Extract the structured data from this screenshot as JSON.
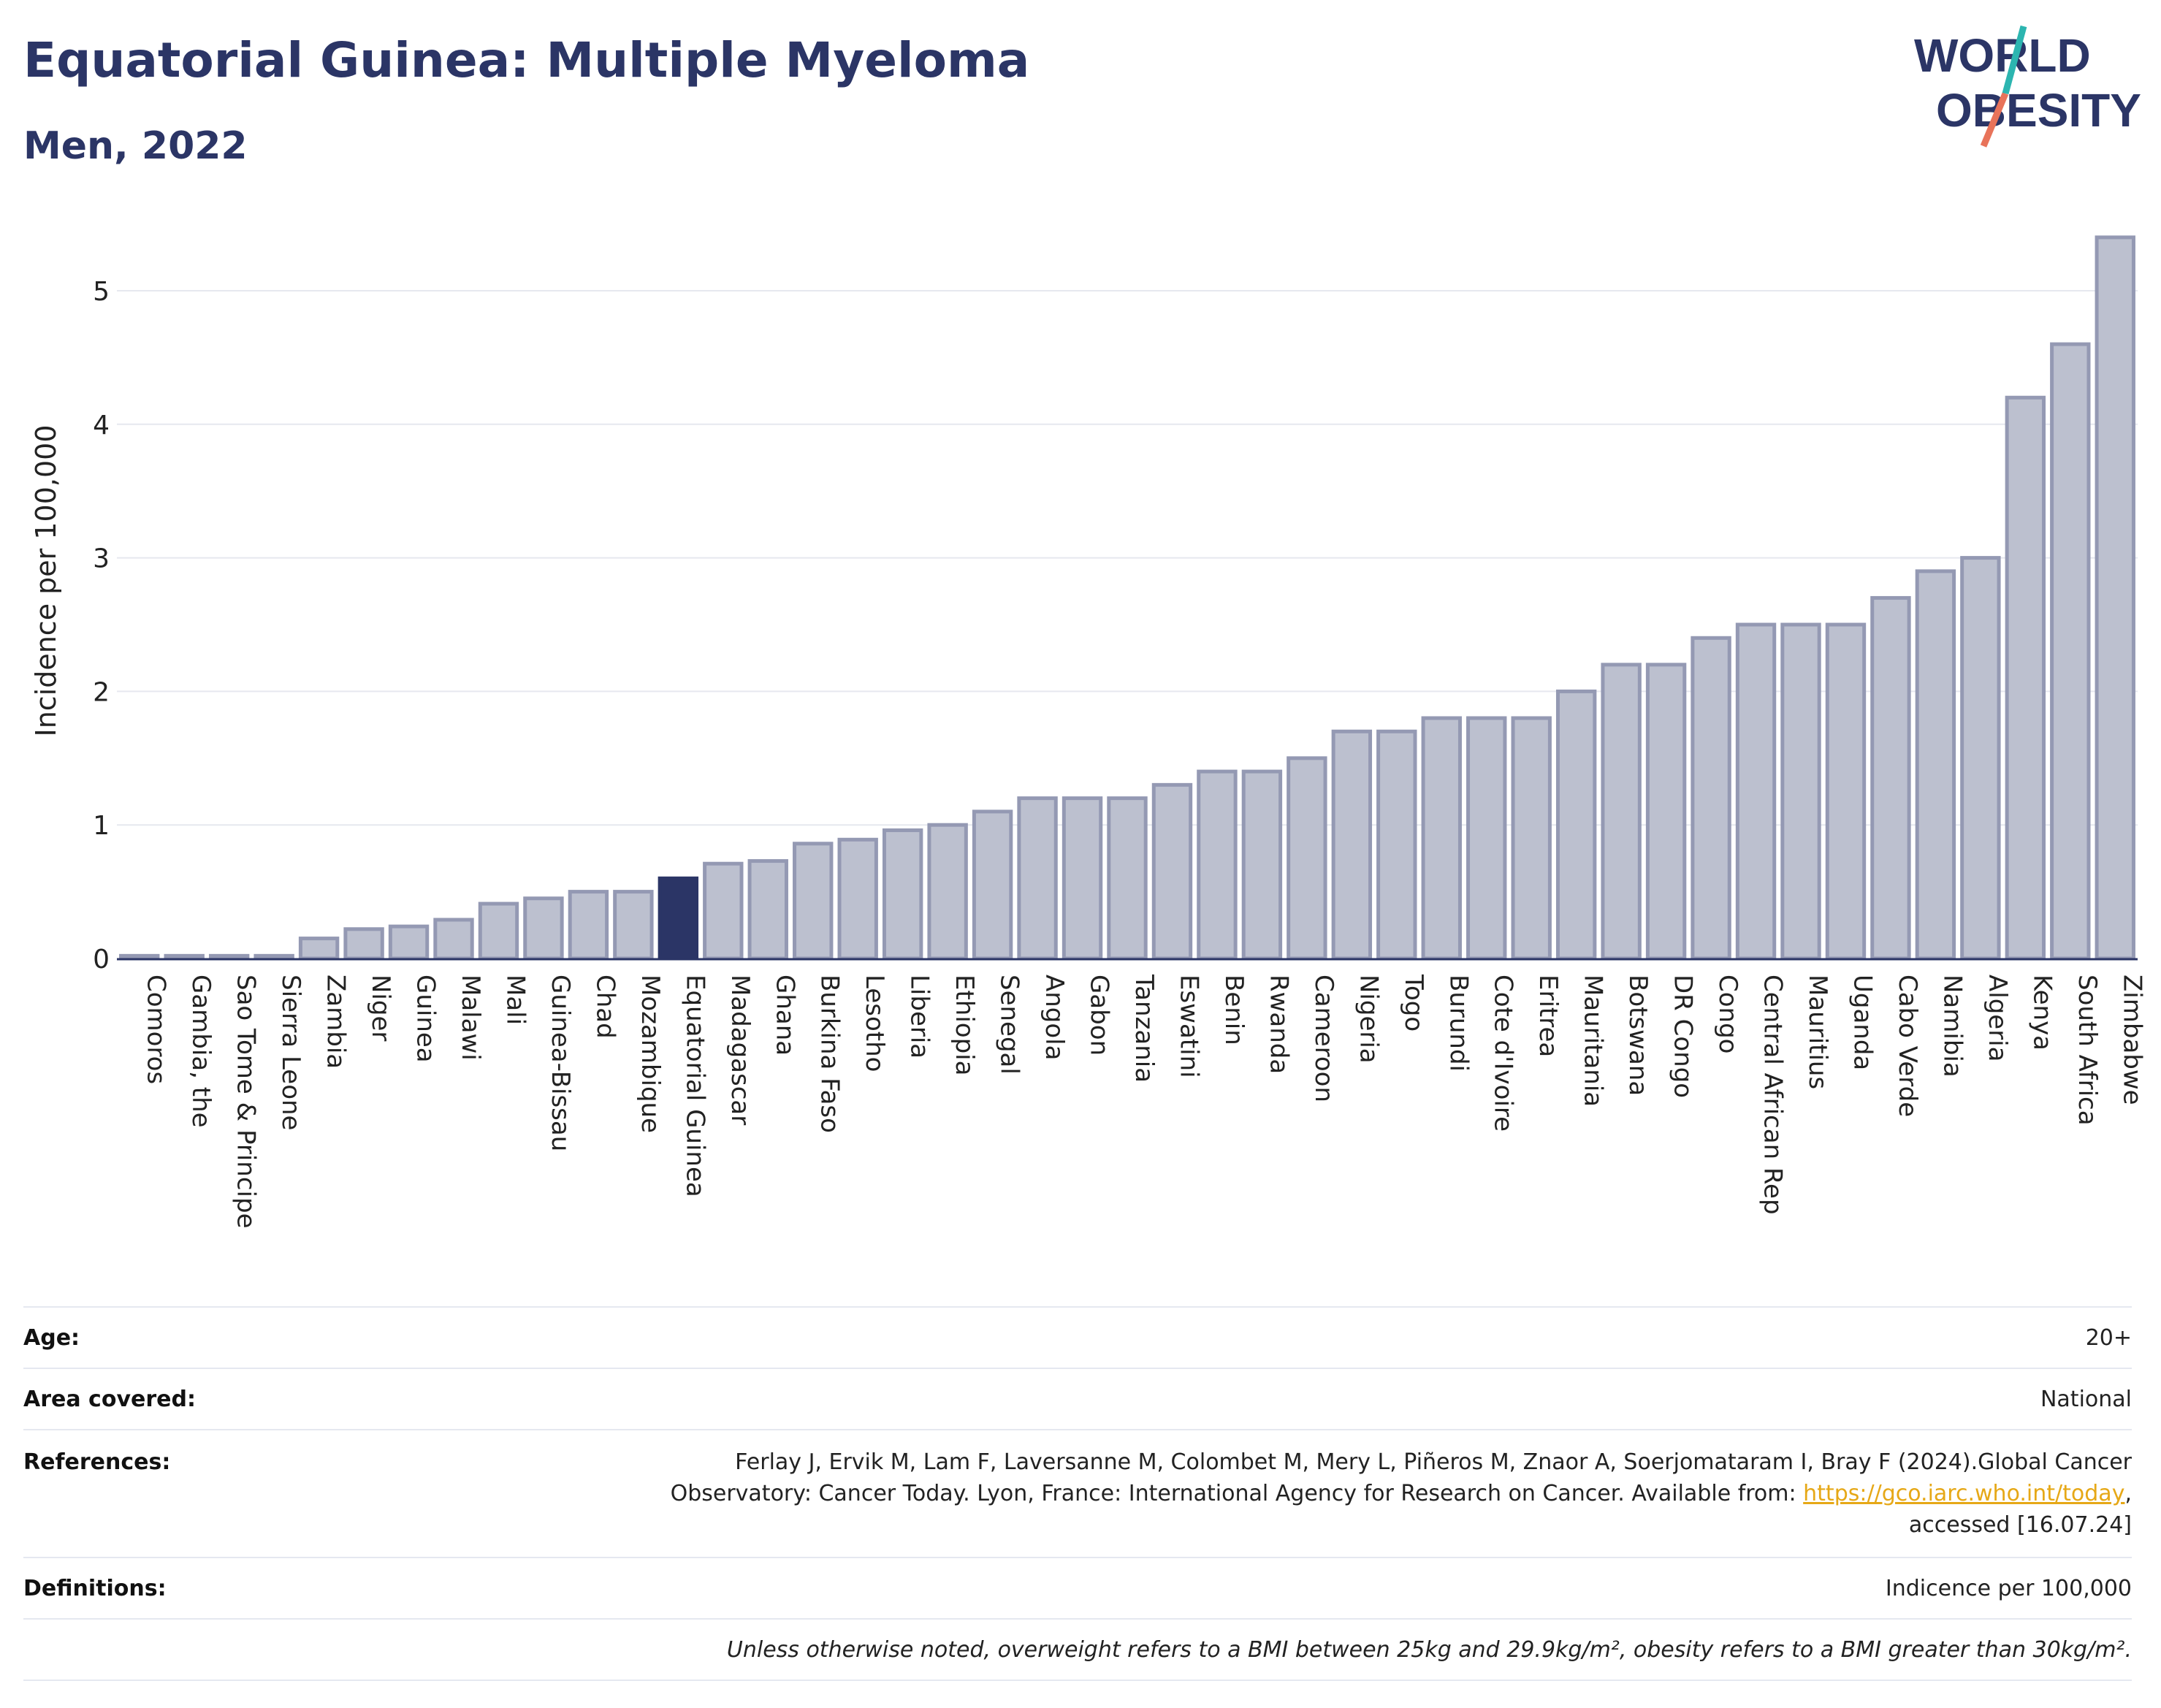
{
  "title": "Equatorial Guinea: Multiple Myeloma",
  "subtitle": "Men, 2022",
  "logo": {
    "line1": "WORLD",
    "line2": "OBESITY"
  },
  "colors": {
    "bar": "#bcc0cf",
    "bar_stroke": "#9499b3",
    "highlight": "#2b3566",
    "title": "#2b3566",
    "link": "#e6a817"
  },
  "chart_data": {
    "type": "bar",
    "ylabel": "Incidence per 100,000",
    "ylim": [
      0,
      5.5
    ],
    "yticks": [
      0,
      1,
      2,
      3,
      4,
      5
    ],
    "grid": true,
    "highlight": "Equatorial Guinea",
    "categories": [
      "Comoros",
      "Gambia, the",
      "Sao Tome & Principe",
      "Sierra Leone",
      "Zambia",
      "Niger",
      "Guinea",
      "Malawi",
      "Mali",
      "Guinea-Bissau",
      "Chad",
      "Mozambique",
      "Equatorial Guinea",
      "Madagascar",
      "Ghana",
      "Burkina Faso",
      "Lesotho",
      "Liberia",
      "Ethiopia",
      "Senegal",
      "Angola",
      "Gabon",
      "Tanzania",
      "Eswatini",
      "Benin",
      "Rwanda",
      "Cameroon",
      "Nigeria",
      "Togo",
      "Burundi",
      "Cote d'Ivoire",
      "Eritrea",
      "Mauritania",
      "Botswana",
      "DR Congo",
      "Congo",
      "Central African Rep",
      "Mauritius",
      "Uganda",
      "Cabo Verde",
      "Namibia",
      "Algeria",
      "Kenya",
      "South Africa",
      "Zimbabwe"
    ],
    "values": [
      0.02,
      0.02,
      0.02,
      0.02,
      0.15,
      0.22,
      0.24,
      0.29,
      0.41,
      0.45,
      0.5,
      0.5,
      0.6,
      0.71,
      0.73,
      0.86,
      0.89,
      0.96,
      1.0,
      1.1,
      1.2,
      1.2,
      1.2,
      1.3,
      1.4,
      1.4,
      1.5,
      1.7,
      1.7,
      1.8,
      1.8,
      1.8,
      2.0,
      2.2,
      2.2,
      2.4,
      2.5,
      2.5,
      2.5,
      2.7,
      2.9,
      3.0,
      4.2,
      4.6,
      5.4
    ]
  },
  "info": {
    "age_label": "Age:",
    "age_value": "20+",
    "area_label": "Area covered:",
    "area_value": "National",
    "ref_label": "References:",
    "ref_line1": "Ferlay J, Ervik M, Lam F, Laversanne M, Colombet M, Mery L, Piñeros M, Znaor A, Soerjomataram I, Bray F (2024).Global Cancer",
    "ref_line2": "Observatory: Cancer Today. Lyon, France: International Agency for Research on Cancer. Available from: ",
    "ref_link": "https://gco.iarc.who.int/today",
    "ref_line2_end": ",",
    "ref_line3": "accessed [16.07.24]",
    "def_label": "Definitions:",
    "def_value": "Indicence per 100,000",
    "note": "Unless otherwise noted, overweight refers to a BMI between 25kg and 29.9kg/m², obesity refers to a BMI greater than 30kg/m²."
  }
}
